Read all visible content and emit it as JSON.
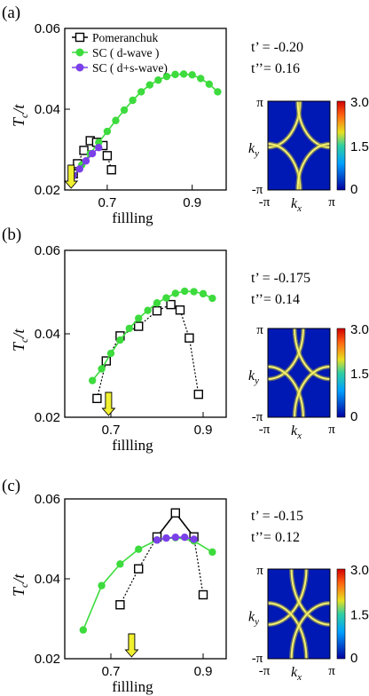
{
  "panels": [
    {
      "label": "(a)",
      "t_prime": "t’ = -0.20",
      "t_dprime": "t’’= 0.16",
      "legend": [
        "Pomeranchuk",
        "SC ( d-wave )",
        "SC ( d+s-wave)"
      ],
      "xlabel": "fillling",
      "ylabel": "T_c/t",
      "xticks": [
        "0.7",
        "0.9"
      ],
      "yticks": [
        "0.02",
        "0.04",
        "0.06"
      ],
      "arrow_x": 0.615,
      "xlim": [
        0.6,
        0.98
      ],
      "ylim": [
        0.02,
        0.06
      ]
    },
    {
      "label": "(b)",
      "t_prime": "t’ = -0.175",
      "t_dprime": "t’’= 0.14",
      "xlabel": "fillling",
      "ylabel": "T_c/t",
      "xticks": [
        "0.7",
        "0.9"
      ],
      "yticks": [
        "0.02",
        "0.04",
        "0.06"
      ],
      "arrow_x": 0.695,
      "xlim": [
        0.6,
        0.95
      ],
      "ylim": [
        0.02,
        0.06
      ]
    },
    {
      "label": "(c)",
      "t_prime": "t’ = -0.15",
      "t_dprime": "t’’= 0.12",
      "xlabel": "fillling",
      "ylabel": "T_c/t",
      "xticks": [
        "0.7",
        "0.9"
      ],
      "yticks": [
        "0.02",
        "0.04",
        "0.06"
      ],
      "arrow_x": 0.745,
      "xlim": [
        0.6,
        0.95
      ],
      "ylim": [
        0.02,
        0.06
      ]
    }
  ],
  "heatmap": {
    "ticks_y": [
      "π",
      "-π"
    ],
    "ticks_x": [
      "-π",
      "π"
    ],
    "xlabel": "k_x",
    "ylabel": "k_y",
    "colorbar_ticks": [
      "3.0",
      "1.5",
      "0"
    ],
    "colors": {
      "low": "#0018b4",
      "mid": "#d8d830",
      "high": "#e81818"
    }
  },
  "chart_data": [
    {
      "type": "line",
      "title": "(a)",
      "xlabel": "fillling",
      "ylabel": "Tc/t",
      "xlim": [
        0.6,
        0.98
      ],
      "ylim": [
        0.02,
        0.06
      ],
      "series": [
        {
          "name": "Pomeranchuk",
          "x": [
            0.62,
            0.63,
            0.645,
            0.66,
            0.675,
            0.69,
            0.7,
            0.71
          ],
          "y": [
            0.024,
            0.0265,
            0.0298,
            0.0322,
            0.0318,
            0.031,
            0.0285,
            0.025
          ]
        },
        {
          "name": "SC ( d-wave )",
          "x": [
            0.62,
            0.64,
            0.66,
            0.68,
            0.7,
            0.72,
            0.74,
            0.76,
            0.78,
            0.8,
            0.82,
            0.84,
            0.86,
            0.88,
            0.9,
            0.92,
            0.94,
            0.96
          ],
          "y": [
            0.0235,
            0.0262,
            0.029,
            0.0318,
            0.0345,
            0.0372,
            0.0398,
            0.0422,
            0.0443,
            0.046,
            0.0472,
            0.0481,
            0.0486,
            0.0487,
            0.0485,
            0.0476,
            0.0462,
            0.0443
          ]
        },
        {
          "name": "SC ( d+s-wave)",
          "x": [
            0.62,
            0.635,
            0.65,
            0.665,
            0.68
          ],
          "y": [
            0.0235,
            0.0252,
            0.0272,
            0.029,
            0.0305
          ]
        }
      ]
    },
    {
      "type": "line",
      "title": "(b)",
      "xlabel": "fillling",
      "ylabel": "Tc/t",
      "xlim": [
        0.6,
        0.95
      ],
      "ylim": [
        0.02,
        0.06
      ],
      "series": [
        {
          "name": "Pomeranchuk",
          "x": [
            0.67,
            0.69,
            0.72,
            0.76,
            0.8,
            0.83,
            0.85,
            0.87,
            0.89
          ],
          "y": [
            0.0245,
            0.0335,
            0.0395,
            0.0418,
            0.0455,
            0.047,
            0.0457,
            0.039,
            0.0255
          ]
        },
        {
          "name": "SC ( d-wave )",
          "x": [
            0.66,
            0.68,
            0.7,
            0.72,
            0.74,
            0.76,
            0.78,
            0.8,
            0.82,
            0.84,
            0.86,
            0.88,
            0.9,
            0.92
          ],
          "y": [
            0.0288,
            0.0316,
            0.0353,
            0.0385,
            0.0413,
            0.0437,
            0.0456,
            0.0474,
            0.0486,
            0.0497,
            0.0502,
            0.0501,
            0.0496,
            0.0485
          ]
        }
      ]
    },
    {
      "type": "line",
      "title": "(c)",
      "xlabel": "fillling",
      "ylabel": "Tc/t",
      "xlim": [
        0.6,
        0.95
      ],
      "ylim": [
        0.02,
        0.06
      ],
      "series": [
        {
          "name": "Pomeranchuk",
          "x": [
            0.72,
            0.76,
            0.8,
            0.84,
            0.88,
            0.9
          ],
          "y": [
            0.0335,
            0.0425,
            0.0505,
            0.0565,
            0.0505,
            0.036
          ]
        },
        {
          "name": "SC ( d-wave )",
          "x": [
            0.64,
            0.68,
            0.72,
            0.76,
            0.8,
            0.84,
            0.88,
            0.92
          ],
          "y": [
            0.0272,
            0.0383,
            0.0437,
            0.0474,
            0.0497,
            0.0503,
            0.0495,
            0.0467
          ]
        },
        {
          "name": "SC ( d+s-wave)",
          "x": [
            0.8,
            0.82,
            0.84,
            0.86,
            0.88
          ],
          "y": [
            0.0497,
            0.0502,
            0.0504,
            0.0504,
            0.0499
          ]
        }
      ]
    }
  ]
}
